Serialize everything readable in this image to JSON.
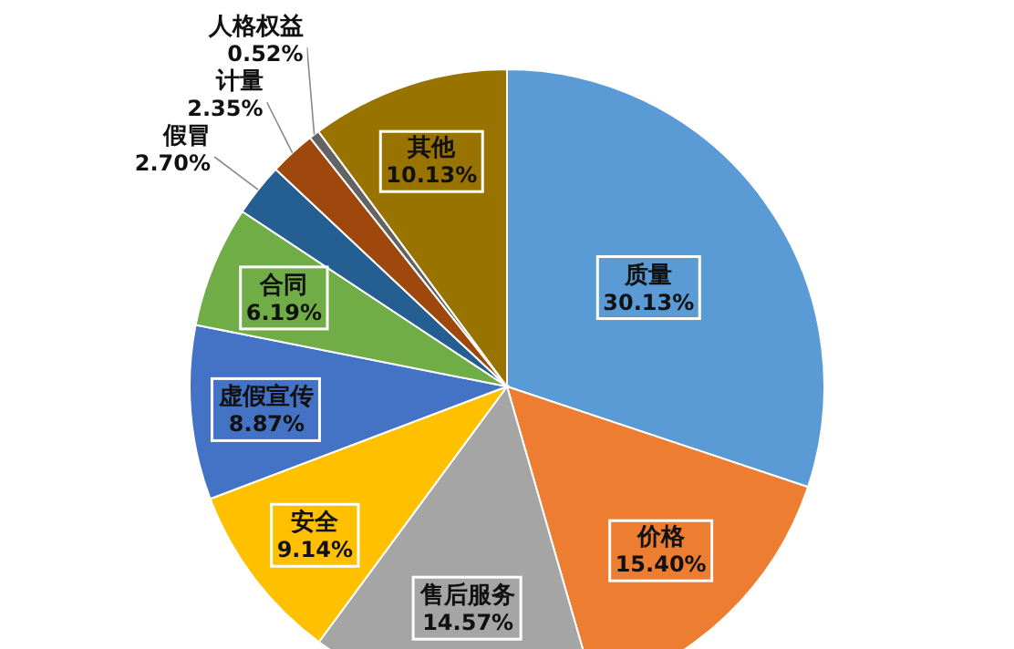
{
  "chart_data": {
    "type": "pie",
    "categories": [
      "质量",
      "价格",
      "售后服务",
      "安全",
      "虚假宣传",
      "合同",
      "假冒",
      "计量",
      "人格权益",
      "其他"
    ],
    "values": [
      30.13,
      15.4,
      14.57,
      9.14,
      8.87,
      6.19,
      2.7,
      2.35,
      0.52,
      10.13
    ],
    "value_labels": [
      "30.13%",
      "15.40%",
      "14.57%",
      "9.14%",
      "8.87%",
      "6.19%",
      "2.70%",
      "2.35%",
      "0.52%",
      "10.13%"
    ],
    "colors": [
      "#5b9bd5",
      "#ed7d31",
      "#a5a5a5",
      "#ffc000",
      "#4472c4",
      "#70ad47",
      "#255e91",
      "#9e480e",
      "#636363",
      "#997300"
    ]
  }
}
